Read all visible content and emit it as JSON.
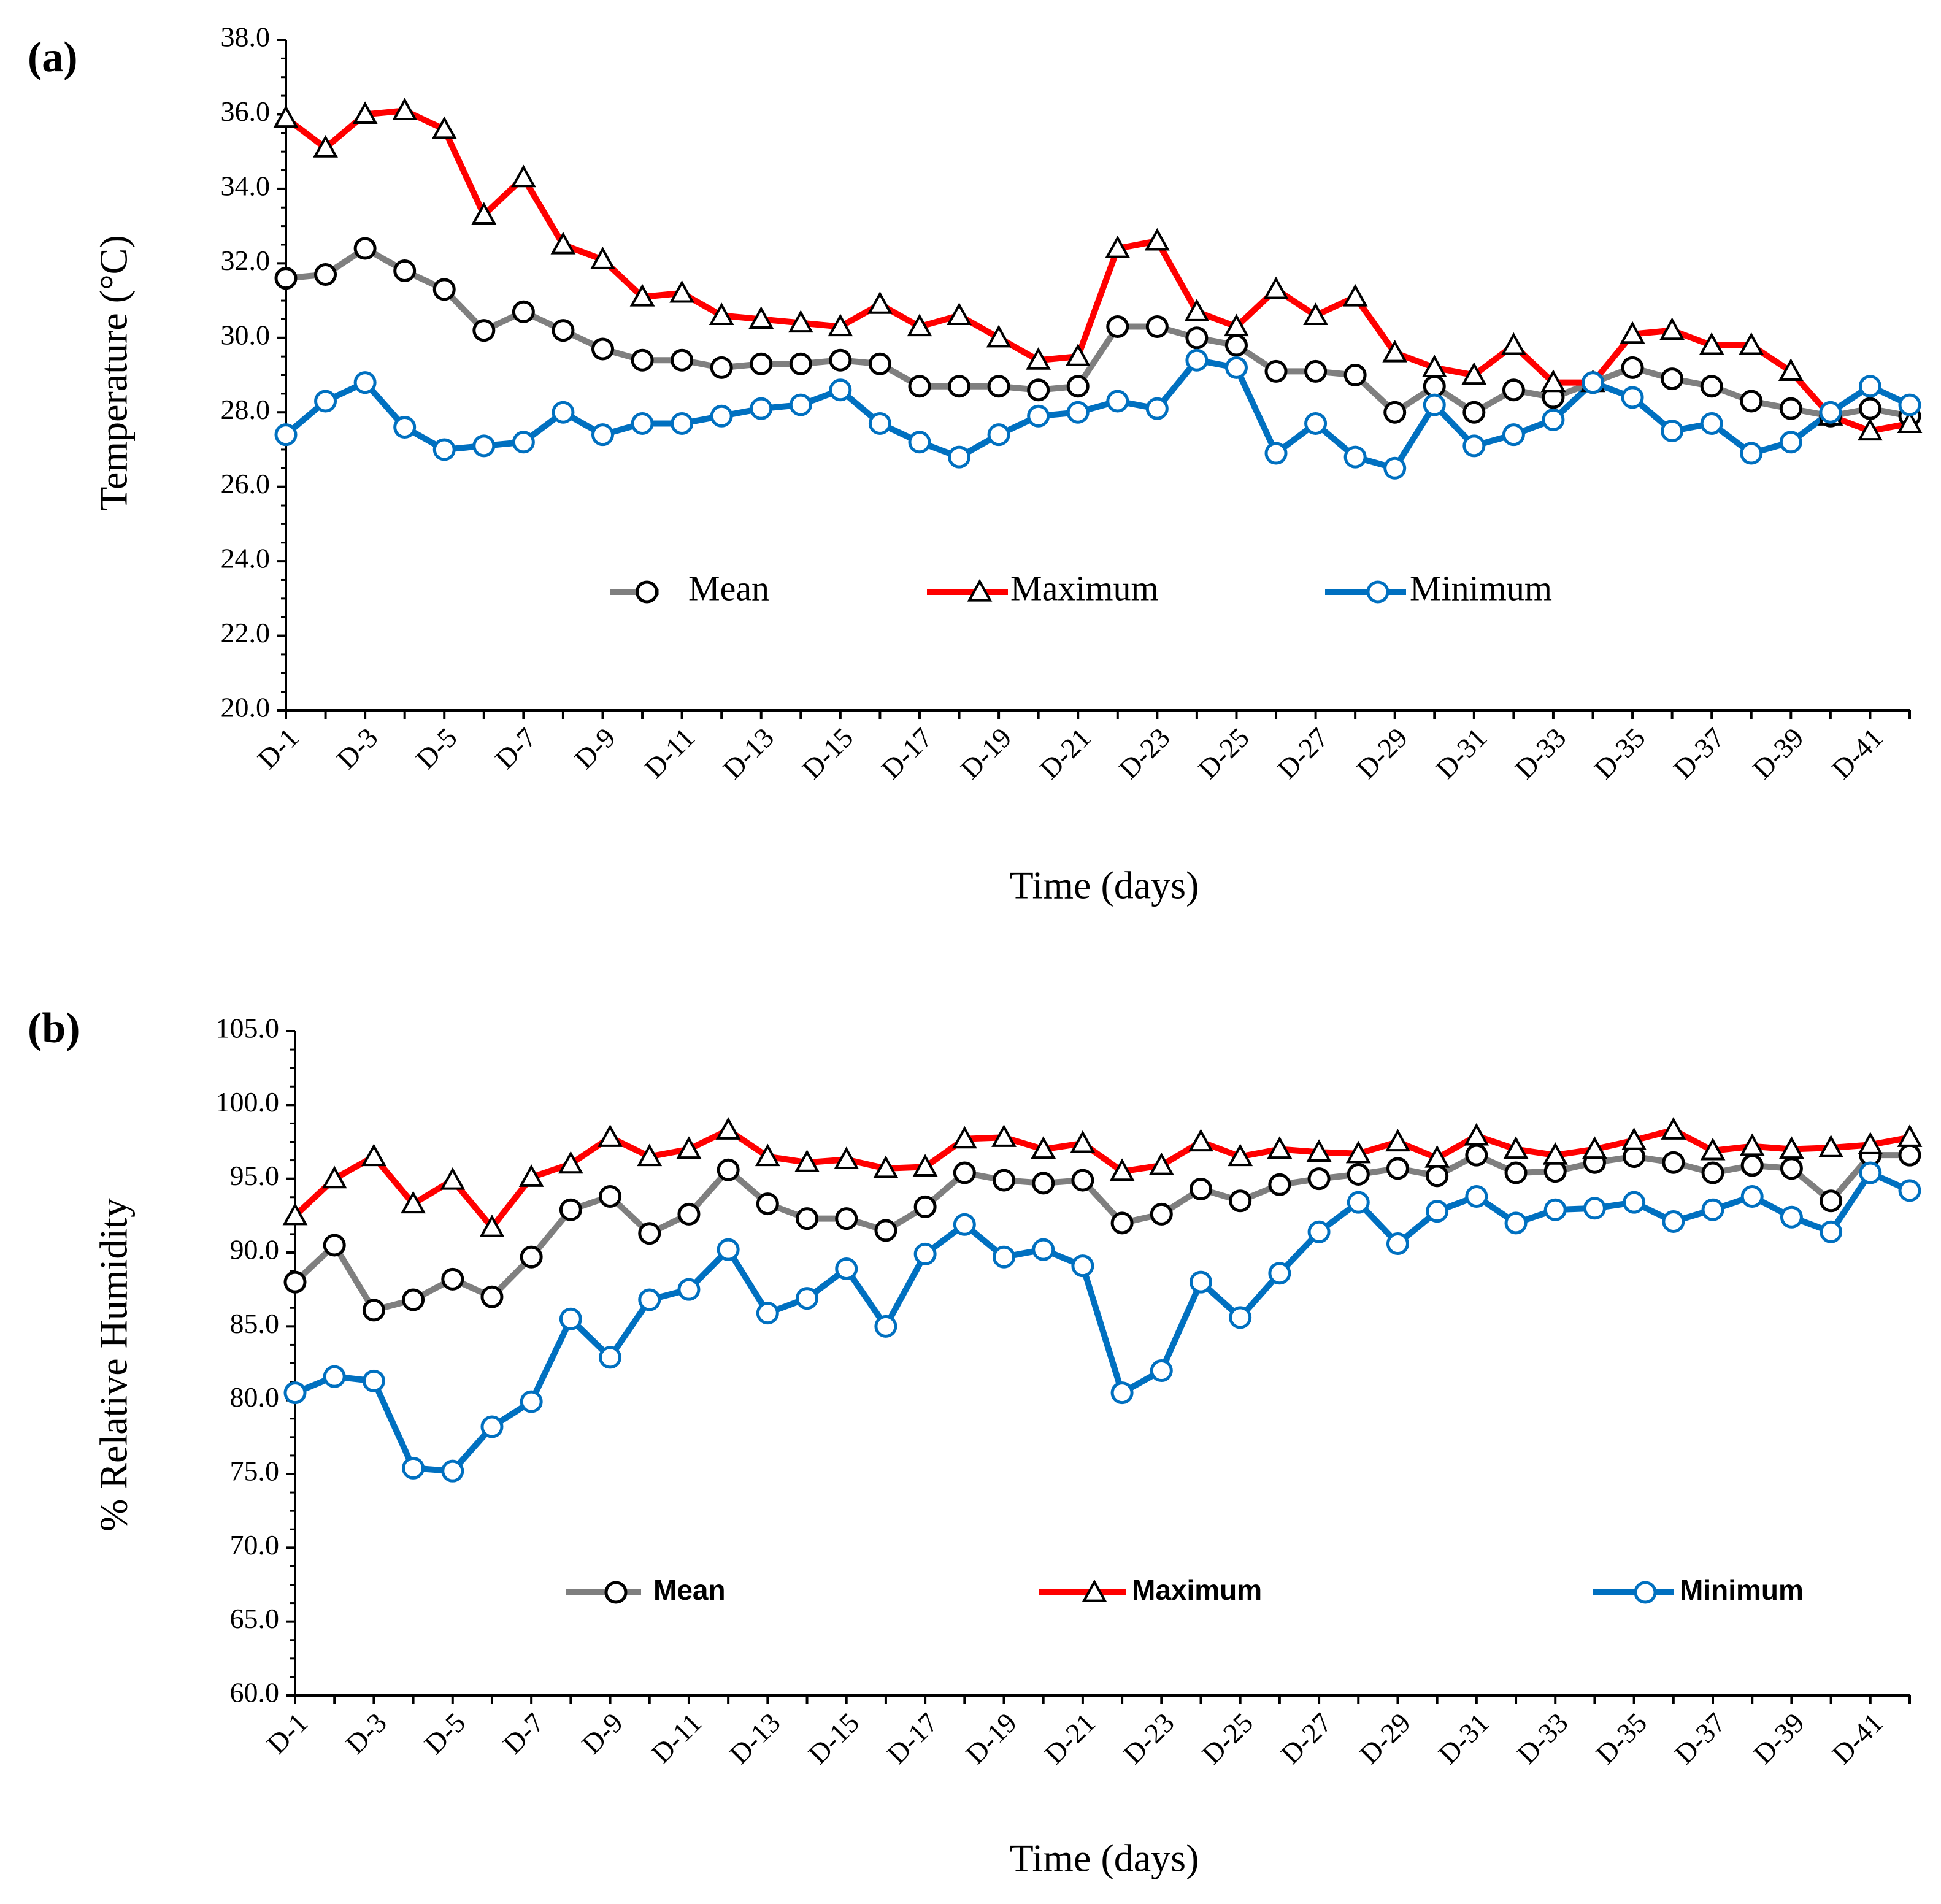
{
  "chart_data": [
    {
      "type": "line",
      "panel_label": "(a)",
      "y_label": "Temperature (°C)",
      "x_label": "Time (days)",
      "categories": [
        "D-1",
        null,
        "D-3",
        null,
        "D-5",
        null,
        "D-7",
        null,
        "D-9",
        null,
        "D-11",
        null,
        "D-13",
        null,
        "D-15",
        null,
        "D-17",
        null,
        "D-19",
        null,
        "D-21",
        null,
        "D-23",
        null,
        "D-25",
        null,
        "D-27",
        null,
        "D-29",
        null,
        "D-31",
        null,
        "D-33",
        null,
        "D-35",
        null,
        "D-37",
        null,
        "D-39",
        null,
        "D-41",
        null
      ],
      "ylim": [
        20,
        38
      ],
      "yticks": [
        {
          "value": 20,
          "label": "20.0"
        },
        {
          "value": 22,
          "label": "22.0"
        },
        {
          "value": 24,
          "label": "24.0"
        },
        {
          "value": 26,
          "label": "26.0"
        },
        {
          "value": 28,
          "label": "28.0"
        },
        {
          "value": 30,
          "label": "30.0"
        },
        {
          "value": 32,
          "label": "32.0"
        },
        {
          "value": 34,
          "label": "34.0"
        },
        {
          "value": 36,
          "label": "36.0"
        },
        {
          "value": 38,
          "label": "38.0"
        }
      ],
      "series": [
        {
          "name": "Mean",
          "color": "#7f7f7f",
          "marker": "circle",
          "values": [
            31.6,
            31.7,
            32.4,
            31.8,
            31.3,
            30.2,
            30.7,
            30.2,
            29.7,
            29.4,
            29.4,
            29.2,
            29.3,
            29.3,
            29.4,
            29.3,
            28.7,
            28.7,
            28.7,
            28.6,
            28.7,
            30.3,
            30.3,
            30.0,
            29.8,
            29.1,
            29.1,
            29.0,
            28.0,
            28.7,
            28.0,
            28.6,
            28.4,
            28.8,
            29.2,
            28.9,
            28.7,
            28.3,
            28.1,
            27.9,
            28.1,
            27.9
          ]
        },
        {
          "name": "Maximum",
          "color": "#ff0000",
          "marker": "triangle",
          "values": [
            35.9,
            35.1,
            36.0,
            36.1,
            35.6,
            33.3,
            34.3,
            32.5,
            32.1,
            31.1,
            31.2,
            30.6,
            30.5,
            30.4,
            30.3,
            30.9,
            30.3,
            30.6,
            30.0,
            29.4,
            29.5,
            32.4,
            32.6,
            30.7,
            30.3,
            31.3,
            30.6,
            31.1,
            29.6,
            29.2,
            29.0,
            29.8,
            28.8,
            28.8,
            30.1,
            30.2,
            29.8,
            29.8,
            29.1,
            27.9,
            27.5,
            27.7
          ]
        },
        {
          "name": "Minimum",
          "color": "#0070c0",
          "marker": "circle",
          "values": [
            27.4,
            28.3,
            28.8,
            27.6,
            27.0,
            27.1,
            27.2,
            28.0,
            27.4,
            27.7,
            27.7,
            27.9,
            28.1,
            28.2,
            28.6,
            27.7,
            27.2,
            26.8,
            27.4,
            27.9,
            28.0,
            28.3,
            28.1,
            29.4,
            29.2,
            26.9,
            27.7,
            26.8,
            26.5,
            28.2,
            27.1,
            27.4,
            27.8,
            28.8,
            28.4,
            27.5,
            27.7,
            26.9,
            27.2,
            28.0,
            28.7,
            28.2
          ]
        }
      ]
    },
    {
      "type": "line",
      "panel_label": "(b)",
      "y_label": "% Relative Humidity",
      "x_label": "Time (days)",
      "categories": [
        "D-1",
        null,
        "D-3",
        null,
        "D-5",
        null,
        "D-7",
        null,
        "D-9",
        null,
        "D-11",
        null,
        "D-13",
        null,
        "D-15",
        null,
        "D-17",
        null,
        "D-19",
        null,
        "D-21",
        null,
        "D-23",
        null,
        "D-25",
        null,
        "D-27",
        null,
        "D-29",
        null,
        "D-31",
        null,
        "D-33",
        null,
        "D-35",
        null,
        "D-37",
        null,
        "D-39",
        null,
        "D-41",
        null
      ],
      "ylim": [
        60,
        105
      ],
      "yticks": [
        {
          "value": 60,
          "label": "60.0"
        },
        {
          "value": 65,
          "label": "65.0"
        },
        {
          "value": 70,
          "label": "70.0"
        },
        {
          "value": 75,
          "label": "75.0"
        },
        {
          "value": 80,
          "label": "80.0"
        },
        {
          "value": 85,
          "label": "85.0"
        },
        {
          "value": 90,
          "label": "90.0"
        },
        {
          "value": 95,
          "label": "95.0"
        },
        {
          "value": 100,
          "label": "100.0"
        },
        {
          "value": 105,
          "label": "105.0"
        }
      ],
      "series": [
        {
          "name": "Mean",
          "color": "#7f7f7f",
          "marker": "circle",
          "values": [
            88.0,
            90.5,
            86.1,
            86.8,
            88.2,
            87.0,
            89.7,
            92.9,
            93.8,
            91.3,
            92.6,
            95.6,
            93.3,
            92.3,
            92.3,
            91.5,
            93.1,
            95.4,
            94.9,
            94.7,
            94.9,
            92.0,
            92.6,
            94.3,
            93.5,
            94.6,
            95.0,
            95.3,
            95.7,
            95.2,
            96.6,
            95.4,
            95.5,
            96.1,
            96.5,
            96.1,
            95.4,
            95.9,
            95.7,
            93.5,
            96.6,
            96.6
          ]
        },
        {
          "name": "Maximum",
          "color": "#ff0000",
          "marker": "triangle",
          "values": [
            92.5,
            95.0,
            96.5,
            93.3,
            94.9,
            91.7,
            95.1,
            96.0,
            97.8,
            96.5,
            97.0,
            98.3,
            96.5,
            96.1,
            96.3,
            95.7,
            95.8,
            97.7,
            97.8,
            97.0,
            97.4,
            95.5,
            95.9,
            97.5,
            96.5,
            97.0,
            96.8,
            96.7,
            97.5,
            96.4,
            97.9,
            97.0,
            96.6,
            97.0,
            97.6,
            98.3,
            96.9,
            97.2,
            97.0,
            97.1,
            97.3,
            97.8
          ]
        },
        {
          "name": "Minimum",
          "color": "#0070c0",
          "marker": "circle",
          "values": [
            80.5,
            81.6,
            81.3,
            75.4,
            75.2,
            78.2,
            79.9,
            85.5,
            82.9,
            86.8,
            87.5,
            90.2,
            85.9,
            86.9,
            88.9,
            85.0,
            89.9,
            91.9,
            89.7,
            90.2,
            89.1,
            80.5,
            82.0,
            88.0,
            85.6,
            88.6,
            91.4,
            93.4,
            90.6,
            92.8,
            93.8,
            92.0,
            92.9,
            93.0,
            93.4,
            92.1,
            92.9,
            93.8,
            92.4,
            91.4,
            95.4,
            94.2
          ]
        }
      ]
    }
  ]
}
